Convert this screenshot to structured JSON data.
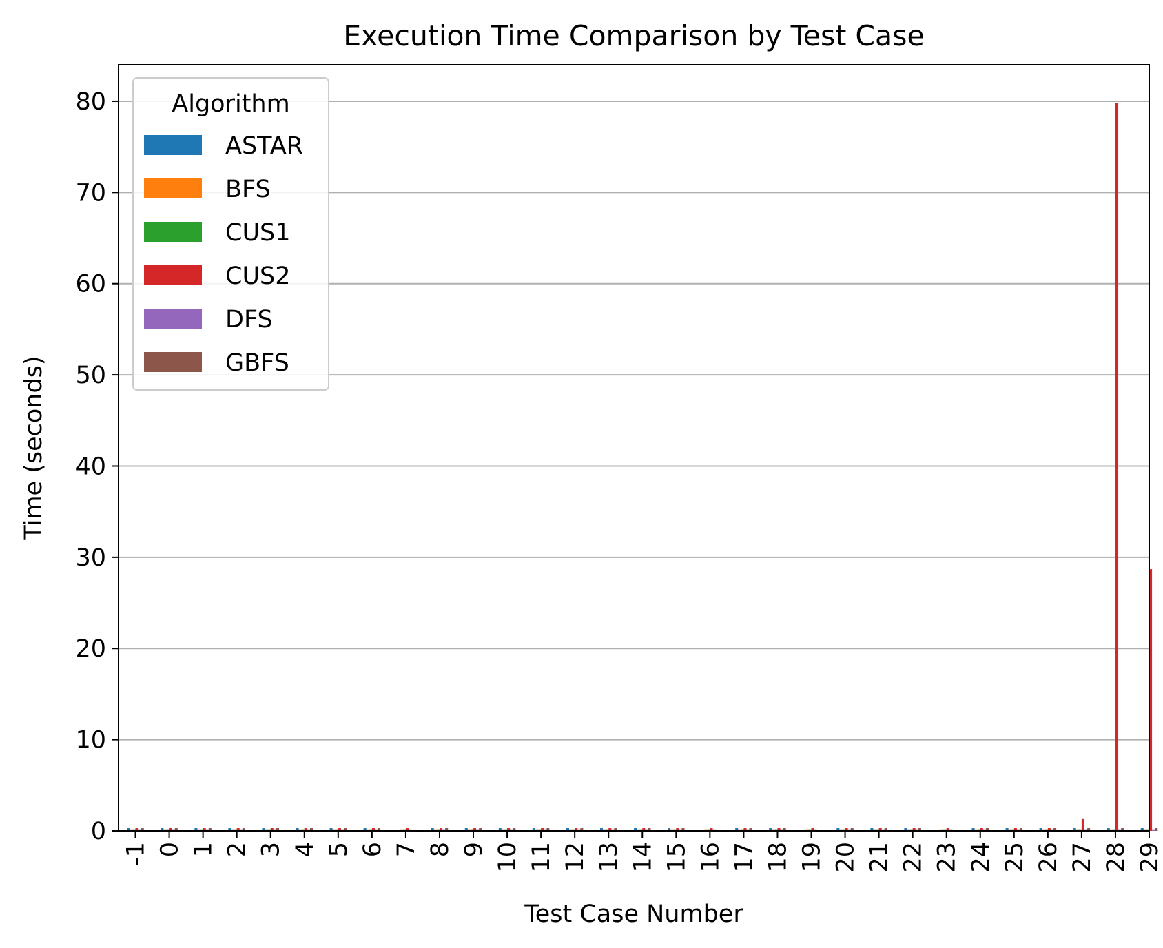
{
  "chart_data": {
    "type": "bar",
    "title": "Execution Time Comparison by Test Case",
    "xlabel": "Test Case Number",
    "ylabel": "Time (seconds)",
    "ylim": [
      0,
      84
    ],
    "yticks": [
      0,
      10,
      20,
      30,
      40,
      50,
      60,
      70,
      80
    ],
    "grid": "y",
    "legend": {
      "title": "Algorithm",
      "placement": "top-left"
    },
    "categories": [
      "-1",
      "0",
      "1",
      "2",
      "3",
      "4",
      "5",
      "6",
      "7",
      "8",
      "9",
      "10",
      "11",
      "12",
      "13",
      "14",
      "15",
      "16",
      "17",
      "18",
      "19",
      "20",
      "21",
      "22",
      "23",
      "24",
      "25",
      "26",
      "27",
      "28",
      "29"
    ],
    "series": [
      {
        "name": "ASTAR",
        "color": "#1f77b4",
        "values": [
          0.3,
          0.3,
          0.3,
          0.3,
          0.3,
          0.3,
          0.3,
          0.3,
          0.0,
          0.3,
          0.3,
          0.3,
          0.3,
          0.3,
          0.3,
          0.3,
          0.3,
          0.0,
          0.3,
          0.3,
          0.0,
          0.3,
          0.3,
          0.3,
          0.0,
          0.3,
          0.3,
          0.3,
          0.3,
          0.3,
          0.3
        ]
      },
      {
        "name": "BFS",
        "color": "#ff7f0e",
        "values": [
          0.1,
          0.1,
          0.1,
          0.1,
          0.1,
          0.1,
          0.1,
          0.1,
          0.1,
          0.1,
          0.1,
          0.1,
          0.1,
          0.1,
          0.1,
          0.1,
          0.1,
          0.1,
          0.1,
          0.1,
          0.1,
          0.1,
          0.1,
          0.1,
          0.1,
          0.1,
          0.1,
          0.1,
          0.1,
          0.1,
          0.1
        ]
      },
      {
        "name": "CUS1",
        "color": "#2ca02c",
        "values": [
          0.1,
          0.1,
          0.1,
          0.1,
          0.1,
          0.1,
          0.1,
          0.1,
          0.1,
          0.1,
          0.1,
          0.1,
          0.1,
          0.1,
          0.1,
          0.1,
          0.1,
          0.1,
          0.1,
          0.1,
          0.1,
          0.1,
          0.1,
          0.1,
          0.1,
          0.1,
          0.1,
          0.1,
          0.1,
          0.1,
          0.1
        ]
      },
      {
        "name": "CUS2",
        "color": "#d62728",
        "values": [
          0.3,
          0.3,
          0.3,
          0.3,
          0.3,
          0.3,
          0.3,
          0.3,
          0.3,
          0.3,
          0.3,
          0.3,
          0.3,
          0.3,
          0.3,
          0.3,
          0.3,
          0.3,
          0.3,
          0.3,
          0.3,
          0.3,
          0.3,
          0.3,
          0.3,
          0.3,
          0.3,
          0.3,
          1.3,
          79.8,
          28.7
        ]
      },
      {
        "name": "DFS",
        "color": "#9467bd",
        "values": [
          0.1,
          0.1,
          0.1,
          0.1,
          0.1,
          0.1,
          0.1,
          0.1,
          0.1,
          0.1,
          0.1,
          0.1,
          0.1,
          0.1,
          0.1,
          0.1,
          0.1,
          0.1,
          0.1,
          0.1,
          0.1,
          0.1,
          0.1,
          0.1,
          0.1,
          0.1,
          0.1,
          0.1,
          0.1,
          0.1,
          0.1
        ]
      },
      {
        "name": "GBFS",
        "color": "#8c564b",
        "values": [
          0.3,
          0.3,
          0.3,
          0.3,
          0.3,
          0.3,
          0.3,
          0.3,
          0.0,
          0.3,
          0.3,
          0.3,
          0.3,
          0.3,
          0.3,
          0.3,
          0.3,
          0.0,
          0.3,
          0.3,
          0.0,
          0.3,
          0.3,
          0.3,
          0.0,
          0.3,
          0.3,
          0.3,
          0.3,
          0.3,
          0.3
        ]
      }
    ]
  }
}
